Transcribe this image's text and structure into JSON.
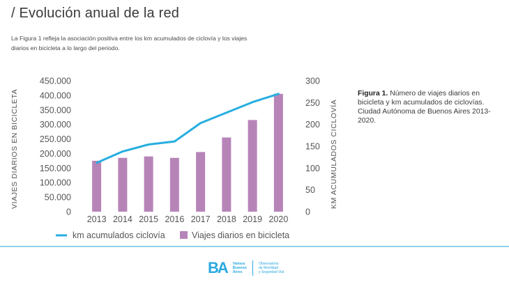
{
  "header": {
    "title": "/ Evolución anual de la red",
    "intro": "La Figura 1 refleja la asociación positiva entre los km acumulados de ciclovía y los viajes diarios en bicicleta a lo largo del periodo."
  },
  "caption": {
    "label": "Figura 1.",
    "text": " Número de viajes diarios en bicicleta y km acumulados de ciclovías. Ciudad Autónoma de Buenos Aires 2013-2020."
  },
  "footer": {
    "logo_mark": "BA",
    "logo_sub": [
      "Vamos",
      "Buenos",
      "Aires"
    ],
    "observatory": [
      "Observatorio",
      "de Movilidad",
      "y Seguridad Vial"
    ]
  },
  "chart_data": {
    "type": "bar+line",
    "categories": [
      "2013",
      "2014",
      "2015",
      "2016",
      "2017",
      "2018",
      "2019",
      "2020"
    ],
    "series": [
      {
        "name": "Viajes diarios en bicicleta",
        "type": "bar",
        "axis": "left",
        "color": "#b784b8",
        "values": [
          175000,
          185000,
          190000,
          185000,
          205000,
          255000,
          315000,
          405000
        ]
      },
      {
        "name": "km acumulados ciclovía",
        "type": "line",
        "axis": "right",
        "color": "#27aee0",
        "values": [
          112,
          138,
          154,
          161,
          203,
          227,
          251,
          270
        ]
      }
    ],
    "ylabel_left": "VIAJES DIARIOS EN BICICLETA",
    "ylabel_right": "KM ACUMULADOS CICLOVÍA",
    "yticks_left": [
      "0",
      "50.000",
      "100.000",
      "150.000",
      "200.000",
      "250.000",
      "300.000",
      "350.000",
      "400.000",
      "450.000"
    ],
    "yticks_right": [
      "0",
      "50",
      "100",
      "150",
      "200",
      "250",
      "300"
    ],
    "ylim_left": [
      0,
      450000
    ],
    "ylim_right": [
      0,
      300
    ],
    "grid": false,
    "legend": "bottom"
  }
}
